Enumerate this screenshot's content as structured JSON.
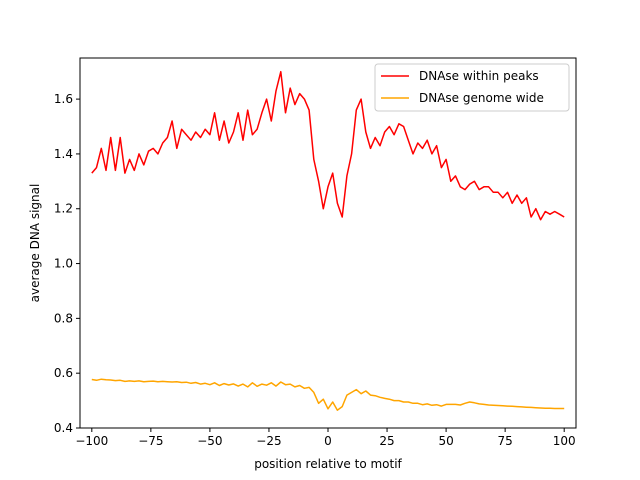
{
  "chart_data": {
    "type": "line",
    "xlabel": "position relative to motif",
    "ylabel": "average DNA signal",
    "xlim": [
      -105,
      105
    ],
    "ylim": [
      0.4,
      1.75
    ],
    "xticks": [
      -100,
      -75,
      -50,
      -25,
      0,
      25,
      50,
      75,
      100
    ],
    "xtick_labels": [
      "−100",
      "−75",
      "−50",
      "−25",
      "0",
      "25",
      "50",
      "75",
      "100"
    ],
    "yticks": [
      0.4,
      0.6,
      0.8,
      1.0,
      1.2,
      1.4,
      1.6
    ],
    "ytick_labels": [
      "0.4",
      "0.6",
      "0.8",
      "1.0",
      "1.2",
      "1.4",
      "1.6"
    ],
    "grid": false,
    "legend_position": "upper right",
    "series": [
      {
        "name": "DNAse within peaks",
        "color": "#ff0000",
        "x": [
          -100,
          -98,
          -96,
          -94,
          -92,
          -90,
          -88,
          -86,
          -84,
          -82,
          -80,
          -78,
          -76,
          -74,
          -72,
          -70,
          -68,
          -66,
          -64,
          -62,
          -60,
          -58,
          -56,
          -54,
          -52,
          -50,
          -48,
          -46,
          -44,
          -42,
          -40,
          -38,
          -36,
          -34,
          -32,
          -30,
          -28,
          -26,
          -24,
          -22,
          -20,
          -18,
          -16,
          -14,
          -12,
          -10,
          -8,
          -6,
          -4,
          -2,
          0,
          2,
          4,
          6,
          8,
          10,
          12,
          14,
          16,
          18,
          20,
          22,
          24,
          26,
          28,
          30,
          32,
          34,
          36,
          38,
          40,
          42,
          44,
          46,
          48,
          50,
          52,
          54,
          56,
          58,
          60,
          62,
          64,
          66,
          68,
          70,
          72,
          74,
          76,
          78,
          80,
          82,
          84,
          86,
          88,
          90,
          92,
          94,
          96,
          98,
          100
        ],
        "values": [
          1.33,
          1.35,
          1.42,
          1.34,
          1.46,
          1.34,
          1.46,
          1.33,
          1.38,
          1.34,
          1.4,
          1.36,
          1.41,
          1.42,
          1.4,
          1.44,
          1.46,
          1.52,
          1.42,
          1.49,
          1.47,
          1.45,
          1.48,
          1.46,
          1.49,
          1.47,
          1.55,
          1.45,
          1.52,
          1.44,
          1.48,
          1.55,
          1.45,
          1.56,
          1.47,
          1.49,
          1.55,
          1.6,
          1.52,
          1.63,
          1.7,
          1.55,
          1.64,
          1.58,
          1.62,
          1.6,
          1.56,
          1.38,
          1.3,
          1.2,
          1.28,
          1.33,
          1.22,
          1.17,
          1.32,
          1.4,
          1.56,
          1.6,
          1.48,
          1.42,
          1.46,
          1.43,
          1.48,
          1.5,
          1.47,
          1.51,
          1.5,
          1.45,
          1.4,
          1.44,
          1.42,
          1.45,
          1.4,
          1.43,
          1.35,
          1.38,
          1.3,
          1.32,
          1.28,
          1.27,
          1.29,
          1.3,
          1.27,
          1.28,
          1.28,
          1.26,
          1.26,
          1.24,
          1.26,
          1.22,
          1.25,
          1.22,
          1.24,
          1.17,
          1.2,
          1.16,
          1.19,
          1.18,
          1.19,
          1.18,
          1.17
        ]
      },
      {
        "name": "DNAse genome wide",
        "color": "#ffa500",
        "x": [
          -100,
          -98,
          -96,
          -94,
          -92,
          -90,
          -88,
          -86,
          -84,
          -82,
          -80,
          -78,
          -76,
          -74,
          -72,
          -70,
          -68,
          -66,
          -64,
          -62,
          -60,
          -58,
          -56,
          -54,
          -52,
          -50,
          -48,
          -46,
          -44,
          -42,
          -40,
          -38,
          -36,
          -34,
          -32,
          -30,
          -28,
          -26,
          -24,
          -22,
          -20,
          -18,
          -16,
          -14,
          -12,
          -10,
          -8,
          -6,
          -4,
          -2,
          0,
          2,
          4,
          6,
          8,
          10,
          12,
          14,
          16,
          18,
          20,
          22,
          24,
          26,
          28,
          30,
          32,
          34,
          36,
          38,
          40,
          42,
          44,
          46,
          48,
          50,
          52,
          54,
          56,
          58,
          60,
          62,
          64,
          66,
          68,
          70,
          72,
          74,
          76,
          78,
          80,
          82,
          84,
          86,
          88,
          90,
          92,
          94,
          96,
          98,
          100
        ],
        "values": [
          0.577,
          0.574,
          0.578,
          0.576,
          0.575,
          0.573,
          0.574,
          0.57,
          0.572,
          0.57,
          0.572,
          0.569,
          0.57,
          0.571,
          0.569,
          0.57,
          0.569,
          0.568,
          0.569,
          0.566,
          0.567,
          0.563,
          0.566,
          0.56,
          0.563,
          0.558,
          0.565,
          0.555,
          0.562,
          0.557,
          0.561,
          0.553,
          0.56,
          0.55,
          0.565,
          0.552,
          0.56,
          0.556,
          0.565,
          0.553,
          0.568,
          0.558,
          0.56,
          0.55,
          0.555,
          0.545,
          0.548,
          0.53,
          0.49,
          0.505,
          0.47,
          0.495,
          0.465,
          0.478,
          0.52,
          0.53,
          0.54,
          0.525,
          0.535,
          0.52,
          0.518,
          0.512,
          0.508,
          0.505,
          0.5,
          0.5,
          0.495,
          0.495,
          0.49,
          0.49,
          0.485,
          0.488,
          0.483,
          0.485,
          0.48,
          0.486,
          0.486,
          0.486,
          0.484,
          0.49,
          0.495,
          0.492,
          0.488,
          0.486,
          0.484,
          0.483,
          0.482,
          0.481,
          0.48,
          0.479,
          0.478,
          0.477,
          0.476,
          0.475,
          0.474,
          0.473,
          0.472,
          0.472,
          0.471,
          0.471,
          0.471
        ]
      }
    ]
  }
}
